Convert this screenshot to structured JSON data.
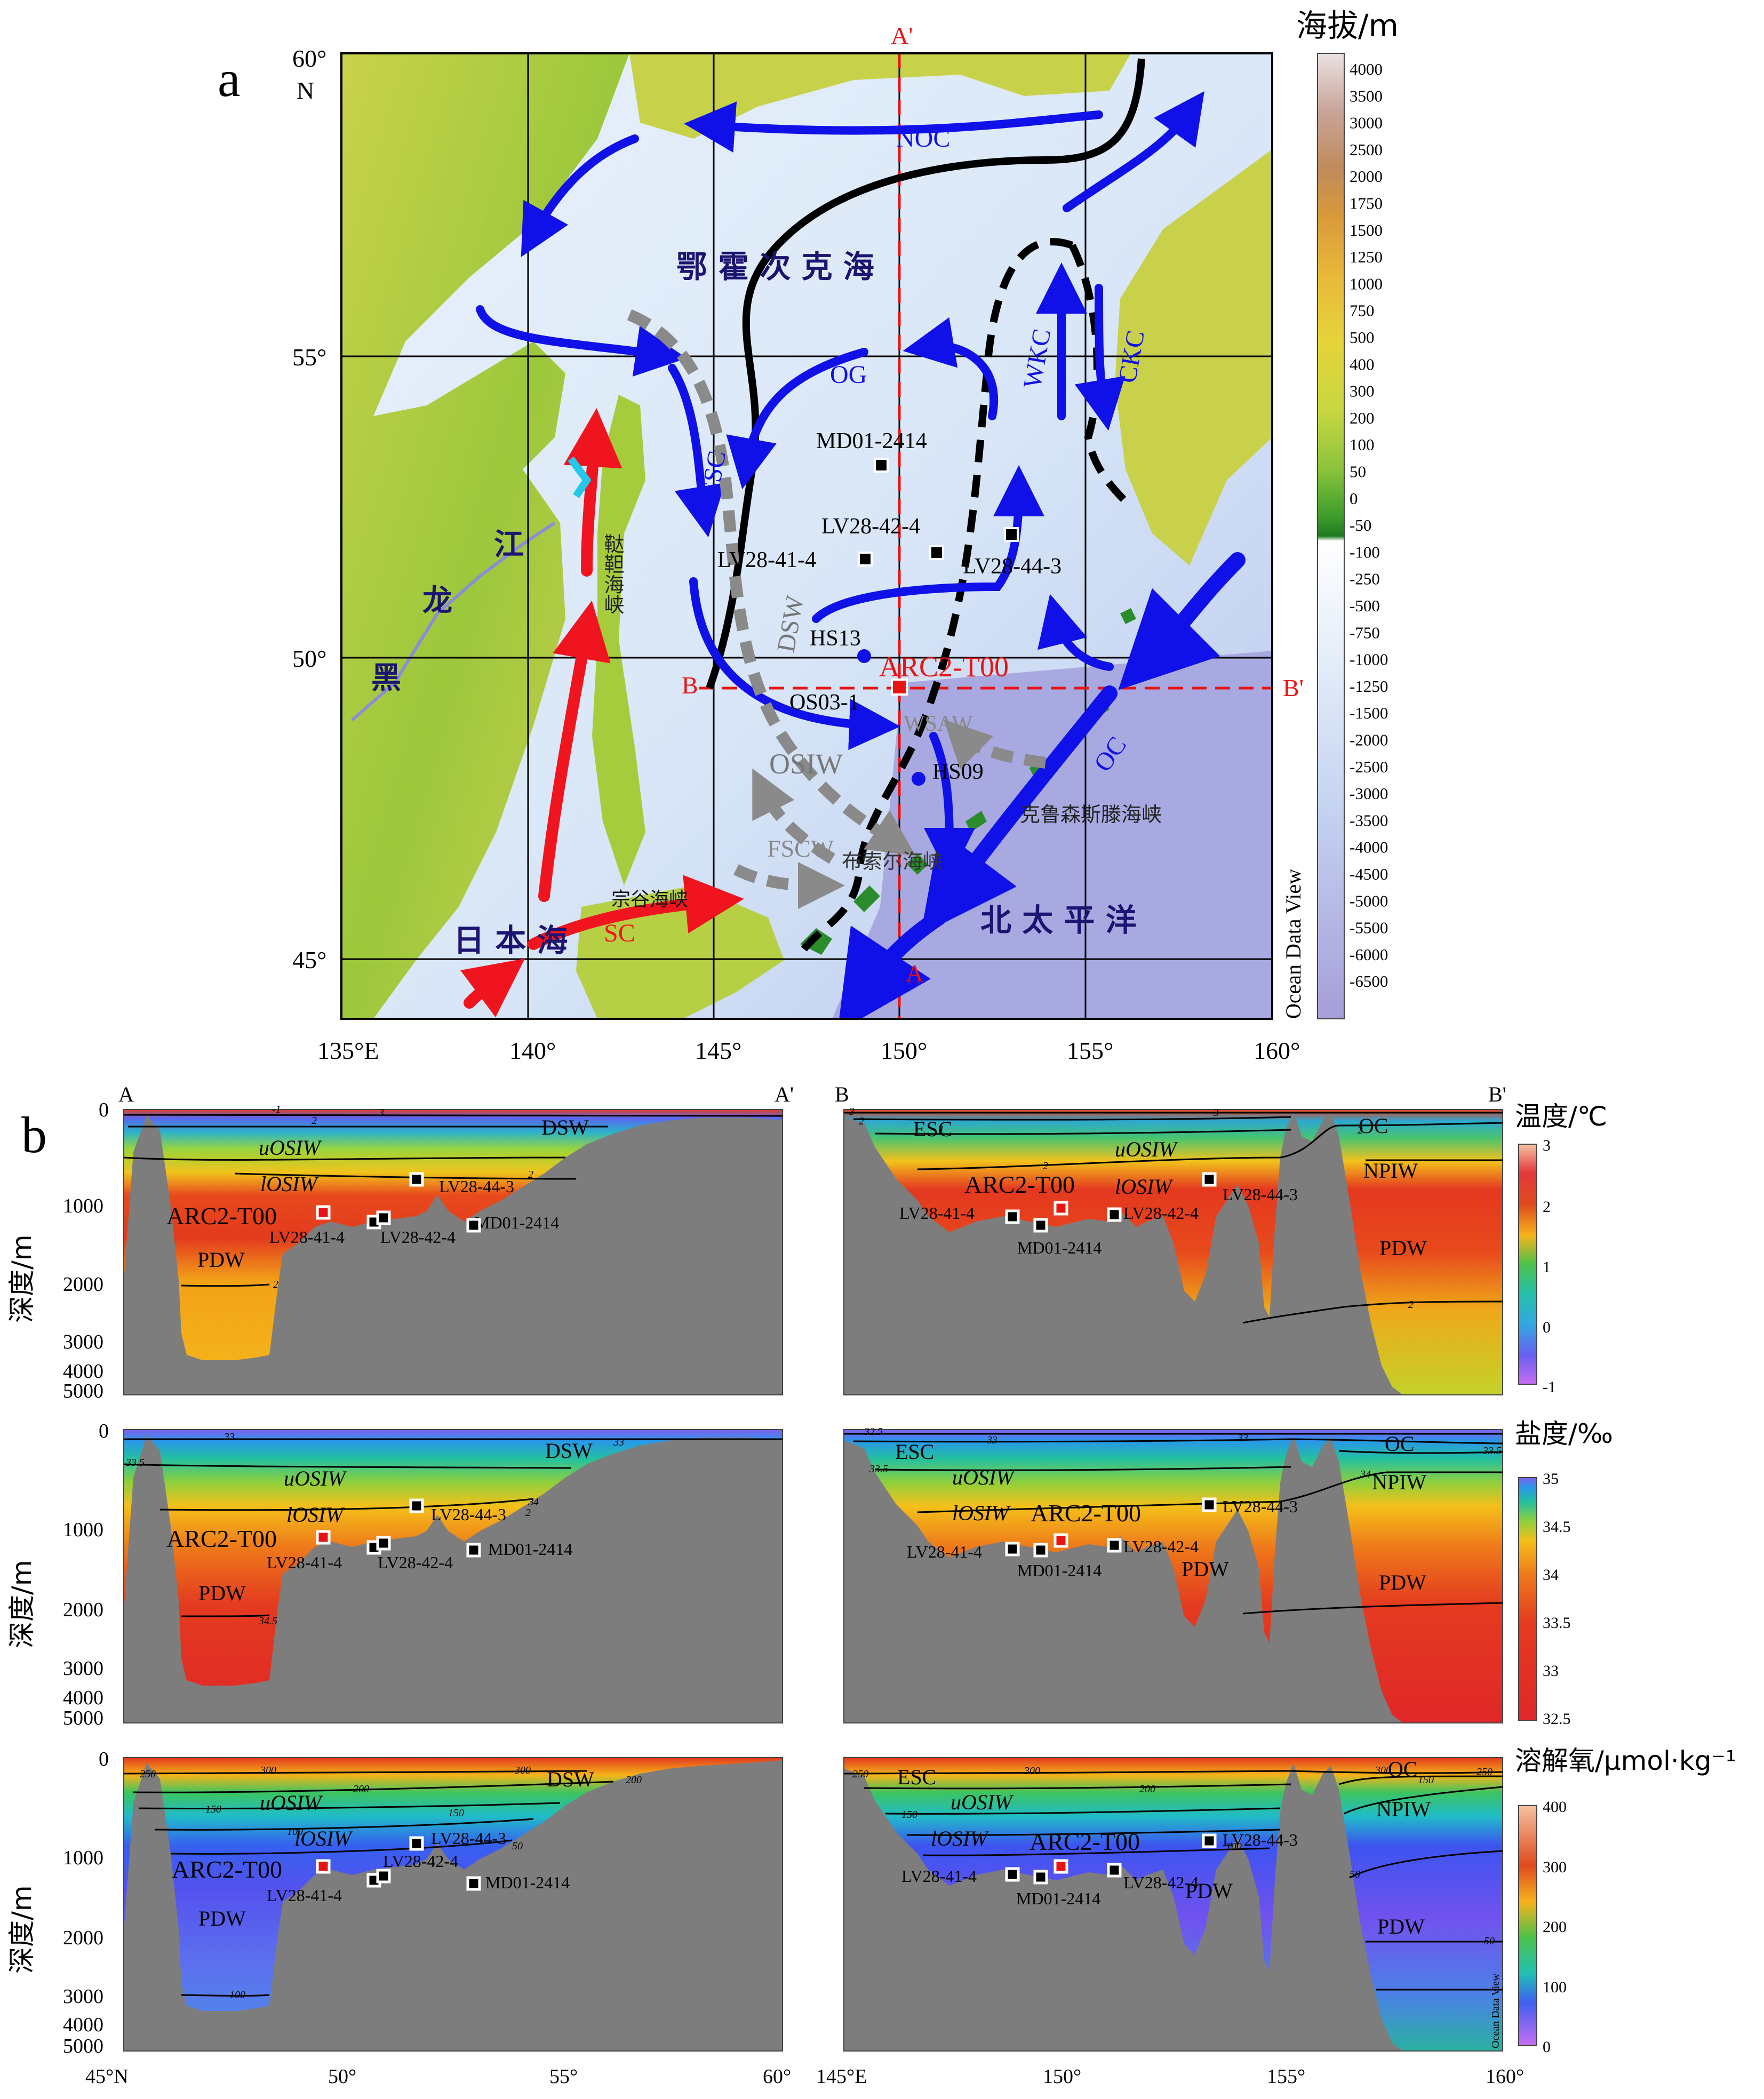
{
  "panel_a": {
    "label": "a",
    "lat_ticks": [
      "60°",
      "N",
      "55°",
      "50°",
      "45°"
    ],
    "lon_ticks": [
      "135°E",
      "140°",
      "145°",
      "150°",
      "155°",
      "160°"
    ],
    "section_labels": {
      "a_top": "A'",
      "a_bottom": "A",
      "b_left": "B",
      "b_right": "B'"
    },
    "place_labels": {
      "okhotsk": "鄂 霍 次 克 海",
      "heilongjiang": "黑",
      "long": "龙",
      "jiang": "江",
      "tatar": "鞑靼海峡",
      "japan_sea": "日 本 海",
      "north_pacific": "北 太 平 洋",
      "soya": "宗谷海峡",
      "bussol": "布索尔海峡",
      "krusenstern": "克鲁森斯滕海峡"
    },
    "currents": [
      "NOC",
      "OG",
      "ESC",
      "WKC",
      "CKC",
      "OC",
      "SC",
      "DSW",
      "WSAW",
      "OSIW",
      "FSCW"
    ],
    "sites": {
      "MD01_2414": "MD01-2414",
      "LV28_42_4": "LV28-42-4",
      "LV28_41_4": "LV28-41-4",
      "LV28_44_3": "LV28-44-3",
      "HS13": "HS13",
      "ARC2_T00": "ARC2-T00",
      "OS03_1": "OS03-1",
      "HS09": "HS09"
    },
    "colorbar": {
      "title": "海拔/m",
      "labels": [
        "4000",
        "3500",
        "3000",
        "2500",
        "2000",
        "1750",
        "1500",
        "1250",
        "1000",
        "750",
        "500",
        "400",
        "300",
        "200",
        "100",
        "50",
        "0",
        "-50",
        "-100",
        "-250",
        "-500",
        "-750",
        "-1000",
        "-1250",
        "-1500",
        "-2000",
        "-2500",
        "-3000",
        "-3500",
        "-4000",
        "-4500",
        "-5000",
        "-5500",
        "-6000",
        "-6500"
      ],
      "watermark": "Ocean Data View"
    }
  },
  "panel_b": {
    "label": "b",
    "left_section": {
      "start": "A",
      "end": "A'",
      "x_ticks": [
        "45°N",
        "50°",
        "55°",
        "60°"
      ]
    },
    "right_section": {
      "start": "B",
      "end": "B'",
      "x_ticks": [
        "145°E",
        "150°",
        "155°",
        "160°"
      ]
    },
    "depth_axis": {
      "label": "深度/m",
      "ticks": [
        "0",
        "1000",
        "2000",
        "3000",
        "4000",
        "5000"
      ]
    },
    "water_masses": {
      "dsw": "DSW",
      "uosiw": "uOSIW",
      "losiw": "lOSIW",
      "pdw": "PDW",
      "esc": "ESC",
      "oc": "OC",
      "npiw": "NPIW"
    },
    "rows": [
      {
        "name": "温度/℃",
        "ticks": [
          "3",
          "2",
          "1",
          "0",
          "-1"
        ],
        "contours_left": [
          "-1",
          "2",
          "3",
          "2",
          "2"
        ],
        "contours_right": [
          "3",
          "2",
          "1",
          "2",
          "3",
          "2",
          "2"
        ]
      },
      {
        "name": "盐度/‰",
        "ticks": [
          "35",
          "34.5",
          "34",
          "33.5",
          "33",
          "32.5"
        ],
        "contours_left": [
          "33",
          "33.5",
          "33",
          "34",
          "2",
          "34.5"
        ],
        "contours_right": [
          "32.5",
          "33",
          "33",
          "33.5",
          "34",
          "33.5"
        ]
      },
      {
        "name": "溶解氧/μmol·kg⁻¹",
        "ticks": [
          "400",
          "300",
          "200",
          "100",
          "0"
        ],
        "contours_left": [
          "250",
          "300",
          "200",
          "150",
          "300",
          "200",
          "100",
          "150",
          "50",
          "100"
        ],
        "contours_right": [
          "250",
          "300",
          "300",
          "200",
          "150",
          "100",
          "50",
          "150",
          "250",
          "50"
        ]
      }
    ],
    "watermark": "Ocean Data View"
  }
}
